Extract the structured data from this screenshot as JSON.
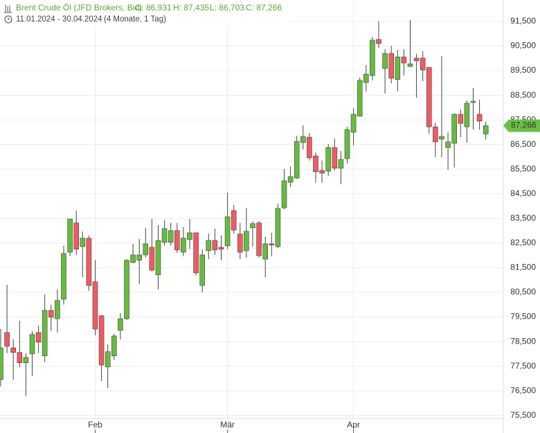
{
  "chart_data": {
    "type": "candlestick",
    "info": {
      "name": "Brent Crude Öl (JFD Brokers, Bid)",
      "open": "O: 86,931",
      "high": "H: 87,435",
      "low": "L: 86,703",
      "close": "C: 87,266",
      "range": "11.01.2024 - 30.04.2024",
      "duration": "(4 Monate, 1 Tag)"
    },
    "categories": [
      null,
      null,
      null,
      null,
      null,
      null,
      null,
      null,
      null,
      null,
      null,
      null,
      null,
      null,
      null,
      "Feb",
      null,
      null,
      null,
      null,
      null,
      null,
      null,
      null,
      null,
      null,
      null,
      null,
      null,
      null,
      null,
      null,
      null,
      null,
      null,
      null,
      "Mär",
      null,
      null,
      null,
      null,
      null,
      null,
      null,
      null,
      null,
      null,
      null,
      null,
      null,
      null,
      null,
      null,
      null,
      null,
      null,
      "Apr",
      null,
      null,
      null,
      null,
      null,
      null,
      null,
      null,
      null,
      null,
      null,
      null,
      null,
      null,
      null,
      null,
      null,
      null,
      null,
      null,
      null
    ],
    "open": [
      76.96,
      78.87,
      78.25,
      78.06,
      77.64,
      78.0,
      78.87,
      77.92,
      79.77,
      79.43,
      80.22,
      82.13,
      83.32,
      82.36,
      82.7,
      80.93,
      79.55,
      77.47,
      77.92,
      78.96,
      79.43,
      81.71,
      81.8,
      82.02,
      82.33,
      81.21,
      82.53,
      82.53,
      83.01,
      82.13,
      82.64,
      82.92,
      80.78,
      82.19,
      82.61,
      82.33,
      82.39,
      83.82,
      82.87,
      82.19,
      83.12,
      83.32,
      81.85,
      82.47,
      82.36,
      83.93,
      84.97,
      85.14,
      86.58,
      86.8,
      86.04,
      85.45,
      85.42,
      86.38,
      85.54,
      85.93,
      87.0,
      87.65,
      89.02,
      89.3,
      90.77,
      89.59,
      90.2,
      89.14,
      90.06,
      89.67,
      90.01,
      90.01,
      89.64,
      87.22,
      86.72,
      86.38,
      86.55,
      87.73,
      87.22,
      88.21,
      87.73,
      86.931
    ],
    "high": [
      79.01,
      80.81,
      78.59,
      79.35,
      78.03,
      78.93,
      79.15,
      80.42,
      80.0,
      80.62,
      82.39,
      83.48,
      83.82,
      82.98,
      82.81,
      81.82,
      79.58,
      78.39,
      78.82,
      79.66,
      81.85,
      82.47,
      82.67,
      83.12,
      83.48,
      83.23,
      83.43,
      83.32,
      83.32,
      83.15,
      83.48,
      82.92,
      82.25,
      82.89,
      83.09,
      82.81,
      84.55,
      84.05,
      83.32,
      83.93,
      83.37,
      83.4,
      82.75,
      82.92,
      84.1,
      85.51,
      85.62,
      86.86,
      87.28,
      86.97,
      86.18,
      85.85,
      86.52,
      86.75,
      86.24,
      87.22,
      87.98,
      89.22,
      89.73,
      90.88,
      91.5,
      90.37,
      90.51,
      90.35,
      90.37,
      91.55,
      90.18,
      90.29,
      89.64,
      87.39,
      90.09,
      87.0,
      87.76,
      87.93,
      88.29,
      88.8,
      88.32,
      87.435
    ],
    "low": [
      76.68,
      78.03,
      76.96,
      77.47,
      76.29,
      77.1,
      78.03,
      77.66,
      78.93,
      78.87,
      80.0,
      81.97,
      82.02,
      81.12,
      80.56,
      78.76,
      76.9,
      76.62,
      77.75,
      78.59,
      79.38,
      81.68,
      80.84,
      81.91,
      81.35,
      80.62,
      82.39,
      82.39,
      82.11,
      81.97,
      82.25,
      81.18,
      80.5,
      81.85,
      82.02,
      81.8,
      82.25,
      82.89,
      81.85,
      81.91,
      82.36,
      81.91,
      81.12,
      81.97,
      82.3,
      83.88,
      84.78,
      85.11,
      86.3,
      85.85,
      84.95,
      84.95,
      85.23,
      85.45,
      84.89,
      85.73,
      86.46,
      87.65,
      88.66,
      89.11,
      90.43,
      88.57,
      88.99,
      88.66,
      89.3,
      89.64,
      88.4,
      89.08,
      86.94,
      85.99,
      85.99,
      85.48,
      85.57,
      86.8,
      86.58,
      87.11,
      87.11,
      86.703
    ],
    "close": [
      78.25,
      78.31,
      78.06,
      77.64,
      77.86,
      78.79,
      78.48,
      79.77,
      79.49,
      80.17,
      82.08,
      83.48,
      82.25,
      82.7,
      80.78,
      79.01,
      77.55,
      78.09,
      78.73,
      79.43,
      81.8,
      82.02,
      82.02,
      82.47,
      81.4,
      82.61,
      83.09,
      83.01,
      82.22,
      82.7,
      82.92,
      81.29,
      82.02,
      82.61,
      82.22,
      82.25,
      83.57,
      83.03,
      82.13,
      82.98,
      83.29,
      81.99,
      82.47,
      82.42,
      83.91,
      85.03,
      85.2,
      86.63,
      86.83,
      85.96,
      85.4,
      85.34,
      86.38,
      85.54,
      85.9,
      87.11,
      87.73,
      89.11,
      89.36,
      90.74,
      90.6,
      90.2,
      89.19,
      90.06,
      89.81,
      89.78,
      89.9,
      89.53,
      87.22,
      86.61,
      86.83,
      86.61,
      87.73,
      87.36,
      88.18,
      88.26,
      87.45,
      87.266
    ],
    "up_color": "#66bb3f",
    "down_color": "#ef5b61",
    "last_price": {
      "value": 87.266,
      "label": "87,266"
    },
    "last_price_color": "#6cbf45",
    "ylim": [
      74.79,
      92.37
    ],
    "yticks": [
      {
        "value": 75.5,
        "label": "75,500"
      },
      {
        "value": 76.5,
        "label": "76,500"
      },
      {
        "value": 77.5,
        "label": "77,500"
      },
      {
        "value": 78.5,
        "label": "78,500"
      },
      {
        "value": 79.5,
        "label": "79,500"
      },
      {
        "value": 80.5,
        "label": "80,500"
      },
      {
        "value": 81.5,
        "label": "81,500"
      },
      {
        "value": 82.5,
        "label": "82,500"
      },
      {
        "value": 83.5,
        "label": "83,500"
      },
      {
        "value": 84.5,
        "label": "84,500"
      },
      {
        "value": 85.5,
        "label": "85,500"
      },
      {
        "value": 86.5,
        "label": "86,500"
      },
      {
        "value": 87.5,
        "label": "87,500"
      },
      {
        "value": 88.5,
        "label": "88,500"
      },
      {
        "value": 89.5,
        "label": "89,500"
      },
      {
        "value": 90.5,
        "label": "90,500"
      },
      {
        "value": 91.5,
        "label": "91,500"
      }
    ],
    "grid": true
  }
}
